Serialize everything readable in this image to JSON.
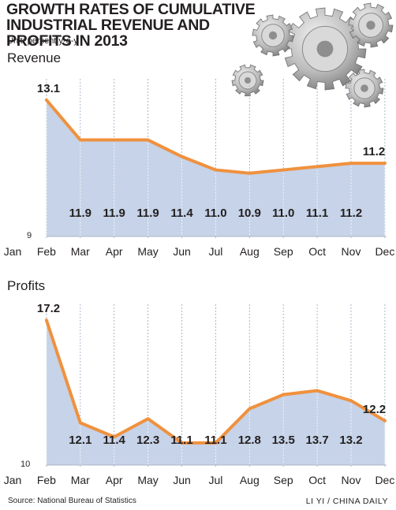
{
  "title": "GROWTH RATES OF CUMULATIVE INDUSTRIAL REVENUE AND PROFITS IN 2013",
  "unit": "Unit: percent y-o-y",
  "source": "Source: National Bureau of Statistics",
  "credit": "LI YI / CHINA DAILY",
  "colors": {
    "line": "#f0913e",
    "area": "#c6d3e8",
    "grid": "#9aa7bd",
    "text": "#231f20"
  },
  "chart_data": [
    {
      "type": "area",
      "title": "Revenue",
      "baseline_label": "9",
      "ylim": [
        9,
        13.5
      ],
      "categories": [
        "Jan",
        "Feb",
        "Mar",
        "Apr",
        "May",
        "Jun",
        "Jul",
        "Aug",
        "Sep",
        "Oct",
        "Nov",
        "Dec"
      ],
      "x": [
        "Feb",
        "Mar",
        "Apr",
        "May",
        "Jun",
        "Jul",
        "Aug",
        "Sep",
        "Oct",
        "Nov",
        "Dec"
      ],
      "values": [
        13.1,
        11.9,
        11.9,
        11.9,
        11.4,
        11.0,
        10.9,
        11.0,
        11.1,
        11.2,
        11.2
      ],
      "point_labels": [
        "13.1",
        "11.9",
        "11.9",
        "11.9",
        "11.4",
        "11.0",
        "10.9",
        "11.0",
        "11.1",
        "11.2",
        "11.2"
      ]
    },
    {
      "type": "area",
      "title": "Profits",
      "baseline_label": "10",
      "ylim": [
        10,
        17.6
      ],
      "categories": [
        "Jan",
        "Feb",
        "Mar",
        "Apr",
        "May",
        "Jun",
        "Jul",
        "Aug",
        "Sep",
        "Oct",
        "Nov",
        "Dec"
      ],
      "x": [
        "Feb",
        "Mar",
        "Apr",
        "May",
        "Jun",
        "Jul",
        "Aug",
        "Sep",
        "Oct",
        "Nov",
        "Dec"
      ],
      "values": [
        17.2,
        12.1,
        11.4,
        12.3,
        11.1,
        11.1,
        12.8,
        13.5,
        13.7,
        13.2,
        12.2
      ],
      "point_labels": [
        "17.2",
        "12.1",
        "11.4",
        "12.3",
        "11.1",
        "11.1",
        "12.8",
        "13.5",
        "13.7",
        "13.2",
        "12.2"
      ]
    }
  ]
}
